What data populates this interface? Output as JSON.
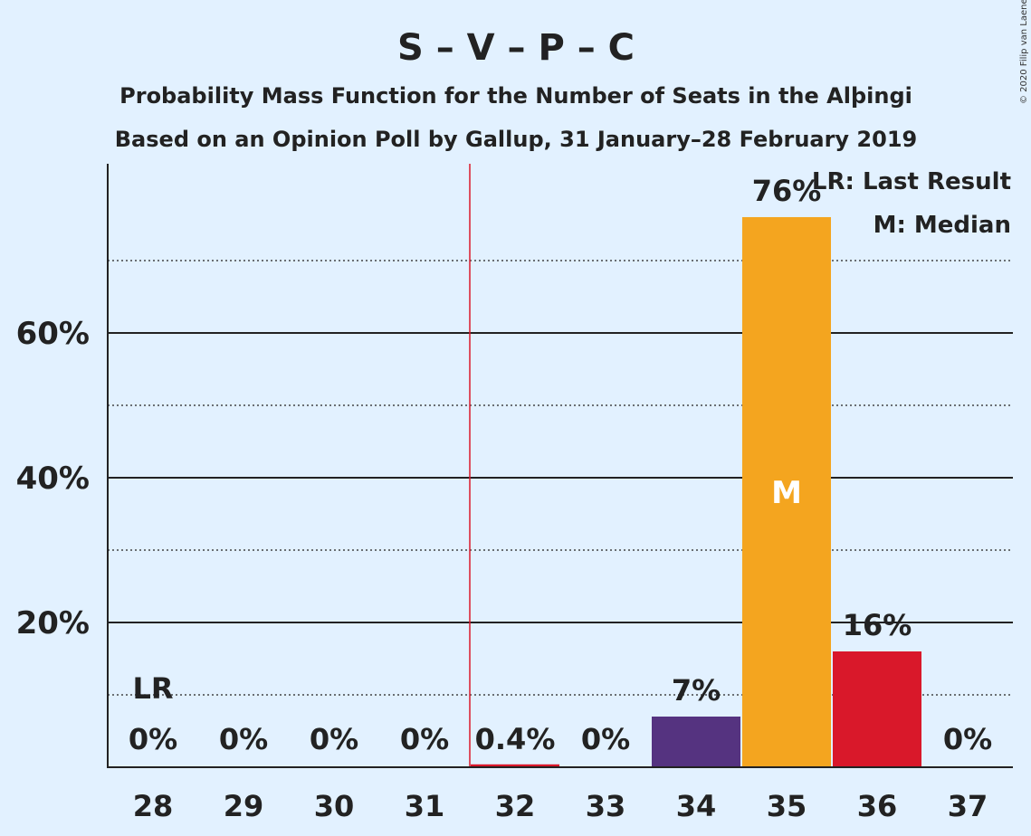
{
  "chart_data": {
    "type": "bar",
    "title": "S – V – P – C",
    "subtitle_1": "Probability Mass Function for the Number of Seats in the Alþingi",
    "subtitle_2": "Based on an Opinion Poll by Gallup, 31 January–28 February 2019",
    "categories": [
      "28",
      "29",
      "30",
      "31",
      "32",
      "33",
      "34",
      "35",
      "36",
      "37"
    ],
    "values": [
      0,
      0,
      0,
      0,
      0.4,
      0,
      7,
      76,
      16,
      0
    ],
    "value_labels": [
      "0%",
      "0%",
      "0%",
      "0%",
      "0.4%",
      "0%",
      "7%",
      "76%",
      "16%",
      "0%"
    ],
    "bar_colors": [
      "#e2f1ff",
      "#e2f1ff",
      "#e2f1ff",
      "#e2f1ff",
      "#d9182a",
      "#e2f1ff",
      "#553380",
      "#f4a51f",
      "#d9182a",
      "#e2f1ff"
    ],
    "ylim": [
      0,
      83
    ],
    "y_ticks_major": [
      20,
      40,
      60
    ],
    "y_tick_labels": [
      "20%",
      "40%",
      "60%"
    ],
    "y_gridlines_dotted": [
      10,
      30,
      50,
      70
    ],
    "majority_line_after_category": "31",
    "majority_line_color": "#d9182a",
    "last_result_category": "28",
    "last_result_marker": "LR",
    "median_category": "35",
    "median_marker": "M",
    "legend_lines": [
      "LR: Last Result",
      "M: Median"
    ],
    "legend_placement": "top-right",
    "copyright": "© 2020 Filip van Laenen"
  }
}
